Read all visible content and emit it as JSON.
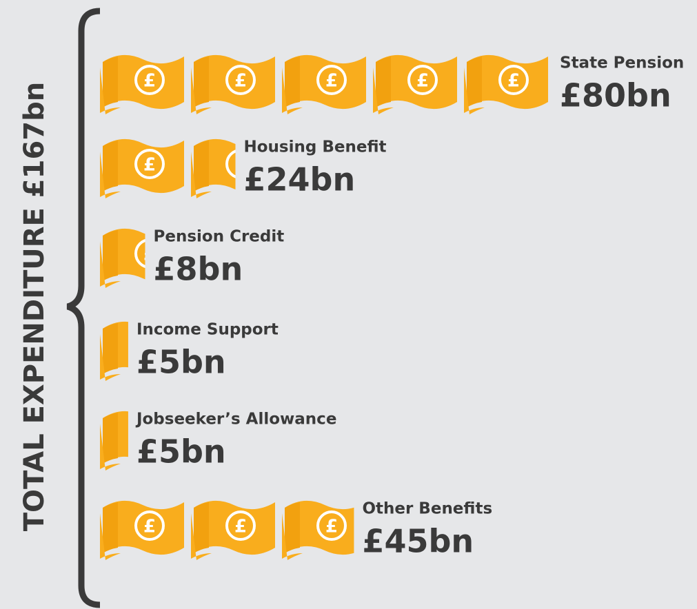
{
  "chart_data": {
    "type": "bar",
    "title": "TOTAL EXPENDITURE £167bn",
    "categories": [
      "State Pension",
      "Housing Benefit",
      "Pension Credit",
      "Income Support",
      "Jobseeker’s Allowance",
      "Other Benefits"
    ],
    "values": [
      80,
      24,
      8,
      5,
      5,
      45
    ],
    "value_labels": [
      "£80bn",
      "£24bn",
      "£8bn",
      "£5bn",
      "£5bn",
      "£45bn"
    ],
    "color": "#f9ad1d"
  }
}
